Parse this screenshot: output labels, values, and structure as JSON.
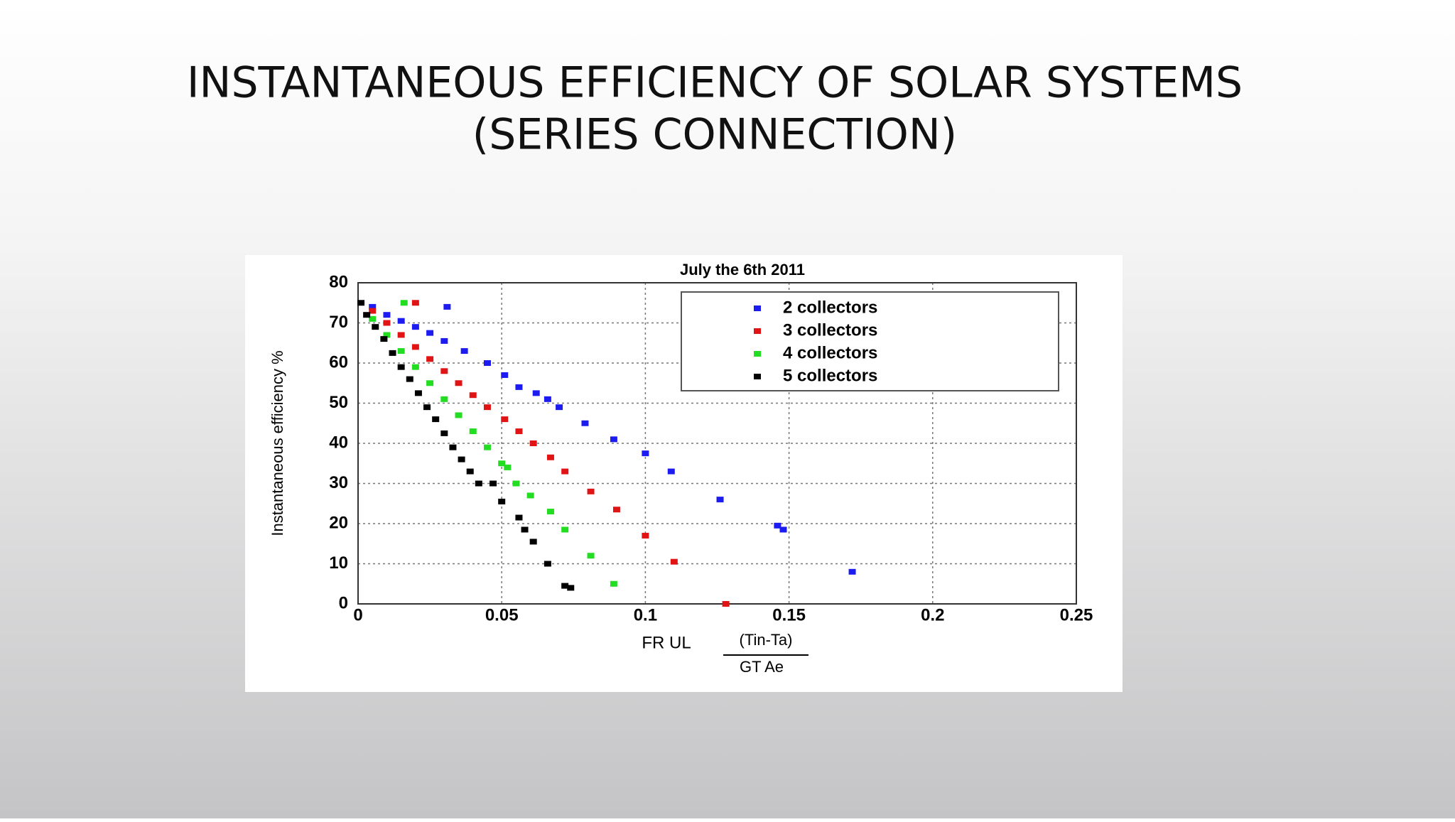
{
  "title": [
    "INSTANTANEOUS EFFICIENCY OF SOLAR SYSTEMS",
    "(SERIES CONNECTION)"
  ],
  "chart_data": {
    "type": "scatter",
    "title": "July the 6th 2011",
    "ylabel": "Instantaneous efficiency %",
    "xlabel": {
      "left": "FR UL",
      "numerator": "(Tin-Ta)",
      "denominator": "GT Ae"
    },
    "xlim": [
      0,
      0.25
    ],
    "xticks": [
      0,
      0.05,
      0.1,
      0.15,
      0.2,
      0.25
    ],
    "ylim": [
      0,
      80
    ],
    "yticks": [
      0,
      10,
      20,
      30,
      40,
      50,
      60,
      70,
      80
    ],
    "grid": true,
    "legend": "upper right",
    "series": [
      {
        "name": "2 collectors",
        "color": "#1c1cf0",
        "x": [
          0.005,
          0.01,
          0.015,
          0.02,
          0.025,
          0.031,
          0.03,
          0.037,
          0.045,
          0.051,
          0.056,
          0.062,
          0.066,
          0.07,
          0.079,
          0.089,
          0.1,
          0.109,
          0.126,
          0.146,
          0.148,
          0.172
        ],
        "y": [
          74,
          72,
          70.5,
          69,
          67.5,
          74,
          65.5,
          63,
          60,
          57,
          54,
          52.5,
          51,
          49,
          45,
          41,
          37.5,
          33,
          26,
          19.5,
          18.5,
          8
        ]
      },
      {
        "name": "3 collectors",
        "color": "#e01414",
        "x": [
          0.005,
          0.01,
          0.015,
          0.02,
          0.02,
          0.025,
          0.03,
          0.035,
          0.04,
          0.045,
          0.051,
          0.056,
          0.061,
          0.067,
          0.072,
          0.081,
          0.09,
          0.1,
          0.11,
          0.128
        ],
        "y": [
          73,
          70,
          67,
          75,
          64,
          61,
          58,
          55,
          52,
          49,
          46,
          43,
          40,
          36.5,
          33,
          28,
          23.5,
          17,
          10.5,
          0
        ]
      },
      {
        "name": "4 collectors",
        "color": "#22dd22",
        "x": [
          0.005,
          0.01,
          0.015,
          0.016,
          0.02,
          0.025,
          0.03,
          0.035,
          0.04,
          0.045,
          0.05,
          0.052,
          0.055,
          0.06,
          0.067,
          0.072,
          0.081,
          0.089
        ],
        "y": [
          71,
          67,
          63,
          75,
          59,
          55,
          51,
          47,
          43,
          39,
          35,
          34,
          30,
          27,
          23,
          18.5,
          12,
          5
        ]
      },
      {
        "name": "5 collectors",
        "color": "#000000",
        "x": [
          0.001,
          0.003,
          0.006,
          0.009,
          0.012,
          0.015,
          0.018,
          0.021,
          0.024,
          0.027,
          0.03,
          0.033,
          0.036,
          0.039,
          0.042,
          0.047,
          0.05,
          0.056,
          0.058,
          0.061,
          0.066,
          0.072,
          0.074
        ],
        "y": [
          75,
          72,
          69,
          66,
          62.5,
          59,
          56,
          52.5,
          49,
          46,
          42.5,
          39,
          36,
          33,
          30,
          30,
          25.5,
          21.5,
          18.5,
          15.5,
          10,
          4.5,
          4
        ]
      }
    ]
  }
}
